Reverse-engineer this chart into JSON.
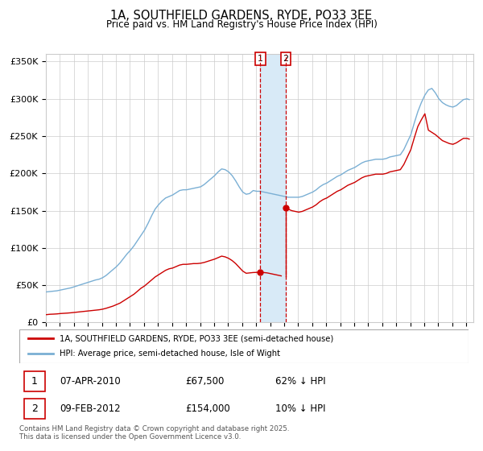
{
  "title": "1A, SOUTHFIELD GARDENS, RYDE, PO33 3EE",
  "subtitle": "Price paid vs. HM Land Registry's House Price Index (HPI)",
  "ylabel_ticks": [
    "£0",
    "£50K",
    "£100K",
    "£150K",
    "£200K",
    "£250K",
    "£300K",
    "£350K"
  ],
  "ytick_values": [
    0,
    50000,
    100000,
    150000,
    200000,
    250000,
    300000,
    350000
  ],
  "ylim": [
    0,
    360000
  ],
  "sale1_year": 2010,
  "sale1_month": 4,
  "sale1_price": 67500,
  "sale1_label": "07-APR-2010",
  "sale1_pct": "62% ↓ HPI",
  "sale2_year": 2012,
  "sale2_month": 2,
  "sale2_price": 154000,
  "sale2_label": "09-FEB-2012",
  "sale2_pct": "10% ↓ HPI",
  "legend1": "1A, SOUTHFIELD GARDENS, RYDE, PO33 3EE (semi-detached house)",
  "legend2": "HPI: Average price, semi-detached house, Isle of Wight",
  "footer": "Contains HM Land Registry data © Crown copyright and database right 2025.\nThis data is licensed under the Open Government Licence v3.0.",
  "line_color_red": "#cc0000",
  "line_color_blue": "#7aafd4",
  "shade_color": "#d8eaf7",
  "background_color": "#ffffff",
  "grid_color": "#cccccc",
  "hpi_data": [
    [
      1995,
      1,
      41000
    ],
    [
      1995,
      4,
      41500
    ],
    [
      1995,
      7,
      42000
    ],
    [
      1995,
      10,
      42500
    ],
    [
      1996,
      1,
      43500
    ],
    [
      1996,
      4,
      44500
    ],
    [
      1996,
      7,
      45500
    ],
    [
      1996,
      10,
      46500
    ],
    [
      1997,
      1,
      48000
    ],
    [
      1997,
      4,
      49500
    ],
    [
      1997,
      7,
      51000
    ],
    [
      1997,
      10,
      52500
    ],
    [
      1998,
      1,
      54000
    ],
    [
      1998,
      4,
      55500
    ],
    [
      1998,
      7,
      57000
    ],
    [
      1998,
      10,
      58000
    ],
    [
      1999,
      1,
      60000
    ],
    [
      1999,
      4,
      63000
    ],
    [
      1999,
      7,
      67000
    ],
    [
      1999,
      10,
      71000
    ],
    [
      2000,
      1,
      75000
    ],
    [
      2000,
      4,
      80000
    ],
    [
      2000,
      7,
      86000
    ],
    [
      2000,
      10,
      92000
    ],
    [
      2001,
      1,
      97000
    ],
    [
      2001,
      4,
      103000
    ],
    [
      2001,
      7,
      110000
    ],
    [
      2001,
      10,
      117000
    ],
    [
      2002,
      1,
      124000
    ],
    [
      2002,
      4,
      133000
    ],
    [
      2002,
      7,
      143000
    ],
    [
      2002,
      10,
      152000
    ],
    [
      2003,
      1,
      158000
    ],
    [
      2003,
      4,
      163000
    ],
    [
      2003,
      7,
      167000
    ],
    [
      2003,
      10,
      169000
    ],
    [
      2004,
      1,
      171000
    ],
    [
      2004,
      4,
      174000
    ],
    [
      2004,
      7,
      177000
    ],
    [
      2004,
      10,
      178000
    ],
    [
      2005,
      1,
      178000
    ],
    [
      2005,
      4,
      179000
    ],
    [
      2005,
      7,
      180000
    ],
    [
      2005,
      10,
      181000
    ],
    [
      2006,
      1,
      182000
    ],
    [
      2006,
      4,
      185000
    ],
    [
      2006,
      7,
      189000
    ],
    [
      2006,
      10,
      193000
    ],
    [
      2007,
      1,
      197000
    ],
    [
      2007,
      4,
      202000
    ],
    [
      2007,
      7,
      206000
    ],
    [
      2007,
      10,
      205000
    ],
    [
      2008,
      1,
      202000
    ],
    [
      2008,
      4,
      197000
    ],
    [
      2008,
      7,
      190000
    ],
    [
      2008,
      10,
      182000
    ],
    [
      2009,
      1,
      175000
    ],
    [
      2009,
      4,
      172000
    ],
    [
      2009,
      7,
      173000
    ],
    [
      2009,
      10,
      177000
    ],
    [
      2010,
      1,
      176000
    ],
    [
      2010,
      4,
      176000
    ],
    [
      2010,
      7,
      175000
    ],
    [
      2010,
      10,
      174000
    ],
    [
      2011,
      1,
      173000
    ],
    [
      2011,
      4,
      172000
    ],
    [
      2011,
      7,
      171000
    ],
    [
      2011,
      10,
      170000
    ],
    [
      2012,
      1,
      169000
    ],
    [
      2012,
      4,
      168000
    ],
    [
      2012,
      7,
      168000
    ],
    [
      2012,
      10,
      168000
    ],
    [
      2013,
      1,
      168000
    ],
    [
      2013,
      4,
      169000
    ],
    [
      2013,
      7,
      171000
    ],
    [
      2013,
      10,
      173000
    ],
    [
      2014,
      1,
      175000
    ],
    [
      2014,
      4,
      178000
    ],
    [
      2014,
      7,
      182000
    ],
    [
      2014,
      10,
      185000
    ],
    [
      2015,
      1,
      187000
    ],
    [
      2015,
      4,
      190000
    ],
    [
      2015,
      7,
      193000
    ],
    [
      2015,
      10,
      196000
    ],
    [
      2016,
      1,
      198000
    ],
    [
      2016,
      4,
      201000
    ],
    [
      2016,
      7,
      204000
    ],
    [
      2016,
      10,
      206000
    ],
    [
      2017,
      1,
      208000
    ],
    [
      2017,
      4,
      211000
    ],
    [
      2017,
      7,
      214000
    ],
    [
      2017,
      10,
      216000
    ],
    [
      2018,
      1,
      217000
    ],
    [
      2018,
      4,
      218000
    ],
    [
      2018,
      7,
      219000
    ],
    [
      2018,
      10,
      219000
    ],
    [
      2019,
      1,
      219000
    ],
    [
      2019,
      4,
      220000
    ],
    [
      2019,
      7,
      222000
    ],
    [
      2019,
      10,
      223000
    ],
    [
      2020,
      1,
      224000
    ],
    [
      2020,
      4,
      225000
    ],
    [
      2020,
      7,
      232000
    ],
    [
      2020,
      10,
      242000
    ],
    [
      2021,
      1,
      252000
    ],
    [
      2021,
      4,
      268000
    ],
    [
      2021,
      7,
      283000
    ],
    [
      2021,
      10,
      295000
    ],
    [
      2022,
      1,
      305000
    ],
    [
      2022,
      4,
      312000
    ],
    [
      2022,
      7,
      314000
    ],
    [
      2022,
      10,
      308000
    ],
    [
      2023,
      1,
      300000
    ],
    [
      2023,
      4,
      295000
    ],
    [
      2023,
      7,
      292000
    ],
    [
      2023,
      10,
      290000
    ],
    [
      2024,
      1,
      289000
    ],
    [
      2024,
      4,
      291000
    ],
    [
      2024,
      7,
      295000
    ],
    [
      2024,
      10,
      299000
    ],
    [
      2025,
      1,
      300000
    ],
    [
      2025,
      3,
      299000
    ]
  ],
  "red_data": [
    [
      1995,
      1,
      10500
    ],
    [
      1995,
      4,
      11000
    ],
    [
      1995,
      7,
      11200
    ],
    [
      1995,
      10,
      11500
    ],
    [
      1996,
      1,
      12000
    ],
    [
      1996,
      4,
      12300
    ],
    [
      1996,
      7,
      12600
    ],
    [
      1996,
      10,
      13000
    ],
    [
      1997,
      1,
      13500
    ],
    [
      1997,
      4,
      14000
    ],
    [
      1997,
      7,
      14500
    ],
    [
      1997,
      10,
      15000
    ],
    [
      1998,
      1,
      15500
    ],
    [
      1998,
      4,
      16000
    ],
    [
      1998,
      7,
      16500
    ],
    [
      1998,
      10,
      17000
    ],
    [
      1999,
      1,
      17800
    ],
    [
      1999,
      4,
      19000
    ],
    [
      1999,
      7,
      20500
    ],
    [
      1999,
      10,
      22000
    ],
    [
      2000,
      1,
      24000
    ],
    [
      2000,
      4,
      26000
    ],
    [
      2000,
      7,
      29000
    ],
    [
      2000,
      10,
      32000
    ],
    [
      2001,
      1,
      35000
    ],
    [
      2001,
      4,
      38000
    ],
    [
      2001,
      7,
      42000
    ],
    [
      2001,
      10,
      46000
    ],
    [
      2002,
      1,
      49000
    ],
    [
      2002,
      4,
      53000
    ],
    [
      2002,
      7,
      57000
    ],
    [
      2002,
      10,
      61000
    ],
    [
      2003,
      1,
      64000
    ],
    [
      2003,
      4,
      67000
    ],
    [
      2003,
      7,
      70000
    ],
    [
      2003,
      10,
      72000
    ],
    [
      2004,
      1,
      73000
    ],
    [
      2004,
      4,
      75000
    ],
    [
      2004,
      7,
      77000
    ],
    [
      2004,
      10,
      78000
    ],
    [
      2005,
      1,
      78000
    ],
    [
      2005,
      4,
      78500
    ],
    [
      2005,
      7,
      79000
    ],
    [
      2005,
      10,
      79000
    ],
    [
      2006,
      1,
      79500
    ],
    [
      2006,
      4,
      80500
    ],
    [
      2006,
      7,
      82000
    ],
    [
      2006,
      10,
      83500
    ],
    [
      2007,
      1,
      85000
    ],
    [
      2007,
      4,
      87000
    ],
    [
      2007,
      7,
      89000
    ],
    [
      2007,
      10,
      88000
    ],
    [
      2008,
      1,
      86000
    ],
    [
      2008,
      4,
      83000
    ],
    [
      2008,
      7,
      79000
    ],
    [
      2008,
      10,
      74000
    ],
    [
      2009,
      1,
      69000
    ],
    [
      2009,
      4,
      66000
    ],
    [
      2009,
      7,
      66500
    ],
    [
      2009,
      10,
      67000
    ],
    [
      2010,
      1,
      67200
    ],
    [
      2010,
      4,
      67500
    ],
    [
      2010,
      7,
      67000
    ],
    [
      2010,
      10,
      66500
    ],
    [
      2011,
      1,
      65500
    ],
    [
      2011,
      4,
      64500
    ],
    [
      2011,
      7,
      63500
    ],
    [
      2011,
      10,
      62500
    ],
    [
      2012,
      2,
      154000
    ],
    [
      2012,
      4,
      152000
    ],
    [
      2012,
      7,
      150000
    ],
    [
      2012,
      10,
      149000
    ],
    [
      2013,
      1,
      148000
    ],
    [
      2013,
      4,
      149000
    ],
    [
      2013,
      7,
      151000
    ],
    [
      2013,
      10,
      153000
    ],
    [
      2014,
      1,
      155000
    ],
    [
      2014,
      4,
      158000
    ],
    [
      2014,
      7,
      162000
    ],
    [
      2014,
      10,
      165000
    ],
    [
      2015,
      1,
      167000
    ],
    [
      2015,
      4,
      170000
    ],
    [
      2015,
      7,
      173000
    ],
    [
      2015,
      10,
      176000
    ],
    [
      2016,
      1,
      178000
    ],
    [
      2016,
      4,
      181000
    ],
    [
      2016,
      7,
      184000
    ],
    [
      2016,
      10,
      186000
    ],
    [
      2017,
      1,
      188000
    ],
    [
      2017,
      4,
      191000
    ],
    [
      2017,
      7,
      194000
    ],
    [
      2017,
      10,
      196000
    ],
    [
      2018,
      1,
      197000
    ],
    [
      2018,
      4,
      198000
    ],
    [
      2018,
      7,
      199000
    ],
    [
      2018,
      10,
      199000
    ],
    [
      2019,
      1,
      199000
    ],
    [
      2019,
      4,
      200000
    ],
    [
      2019,
      7,
      202000
    ],
    [
      2019,
      10,
      203000
    ],
    [
      2020,
      1,
      204000
    ],
    [
      2020,
      4,
      205000
    ],
    [
      2020,
      7,
      212000
    ],
    [
      2020,
      10,
      222000
    ],
    [
      2021,
      1,
      232000
    ],
    [
      2021,
      4,
      248000
    ],
    [
      2021,
      7,
      263000
    ],
    [
      2021,
      10,
      272000
    ],
    [
      2022,
      1,
      280000
    ],
    [
      2022,
      4,
      258000
    ],
    [
      2022,
      7,
      255000
    ],
    [
      2022,
      10,
      252000
    ],
    [
      2023,
      1,
      248000
    ],
    [
      2023,
      4,
      244000
    ],
    [
      2023,
      7,
      242000
    ],
    [
      2023,
      10,
      240000
    ],
    [
      2024,
      1,
      239000
    ],
    [
      2024,
      4,
      241000
    ],
    [
      2024,
      7,
      244000
    ],
    [
      2024,
      10,
      247000
    ],
    [
      2025,
      1,
      247000
    ],
    [
      2025,
      3,
      246000
    ]
  ]
}
